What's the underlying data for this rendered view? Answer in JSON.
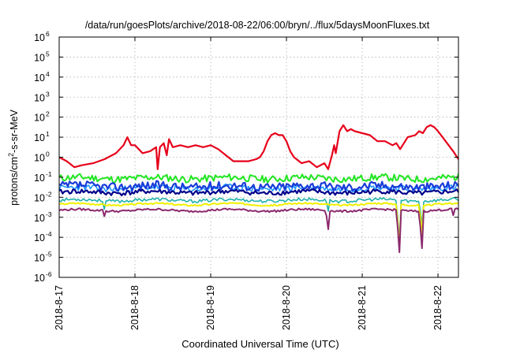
{
  "chart_data": {
    "type": "line",
    "title": "/data/run/goesPlots/archive/2018-08-22/06:00/bryn/../flux/5daysMoonFluxes.txt",
    "xlabel": "Coordinated Universal Time (UTC)",
    "ylabel_parts": {
      "base": "protons/cm",
      "sup": "2",
      "rest": "-s-sr-MeV"
    },
    "y_scale": "log",
    "ylim_exp": [
      -6,
      6
    ],
    "yticks": [
      {
        "base": "10",
        "exp": "-6",
        "value": -6
      },
      {
        "base": "10",
        "exp": "-5",
        "value": -5
      },
      {
        "base": "10",
        "exp": "-4",
        "value": -4
      },
      {
        "base": "10",
        "exp": "-3",
        "value": -3
      },
      {
        "base": "10",
        "exp": "-2",
        "value": -2
      },
      {
        "base": "10",
        "exp": "-1",
        "value": -1
      },
      {
        "base": "10",
        "exp": "0",
        "value": 0
      },
      {
        "base": "10",
        "exp": "1",
        "value": 1
      },
      {
        "base": "10",
        "exp": "2",
        "value": 2
      },
      {
        "base": "10",
        "exp": "3",
        "value": 3
      },
      {
        "base": "10",
        "exp": "4",
        "value": 4
      },
      {
        "base": "10",
        "exp": "5",
        "value": 5
      },
      {
        "base": "10",
        "exp": "6",
        "value": 6
      }
    ],
    "xlim_days": [
      0,
      5.27
    ],
    "xticks": [
      {
        "label": "2018-8-17",
        "day": 0
      },
      {
        "label": "2018-8-18",
        "day": 1
      },
      {
        "label": "2018-8-19",
        "day": 2
      },
      {
        "label": "2018-8-20",
        "day": 3
      },
      {
        "label": "2018-8-21",
        "day": 4
      },
      {
        "label": "2018-8-22",
        "day": 5
      }
    ],
    "grid": true,
    "series": [
      {
        "color": "#e6001a",
        "width": 2.2,
        "points": [
          [
            0,
            0.0
          ],
          [
            0.1,
            -0.2
          ],
          [
            0.2,
            -0.5
          ],
          [
            0.3,
            -0.4
          ],
          [
            0.45,
            -0.3
          ],
          [
            0.6,
            -0.1
          ],
          [
            0.75,
            0.2
          ],
          [
            0.85,
            0.6
          ],
          [
            0.9,
            1.0
          ],
          [
            0.95,
            0.6
          ],
          [
            1.0,
            0.6
          ],
          [
            1.05,
            0.4
          ],
          [
            1.1,
            0.2
          ],
          [
            1.2,
            0.3
          ],
          [
            1.28,
            0.5
          ],
          [
            1.3,
            -0.6
          ],
          [
            1.33,
            0.5
          ],
          [
            1.38,
            0.7
          ],
          [
            1.42,
            0.1
          ],
          [
            1.45,
            0.9
          ],
          [
            1.5,
            0.5
          ],
          [
            1.6,
            0.6
          ],
          [
            1.7,
            0.5
          ],
          [
            1.8,
            0.6
          ],
          [
            1.9,
            0.5
          ],
          [
            2.0,
            0.6
          ],
          [
            2.1,
            0.4
          ],
          [
            2.2,
            0.1
          ],
          [
            2.3,
            -0.2
          ],
          [
            2.4,
            -0.2
          ],
          [
            2.5,
            -0.2
          ],
          [
            2.6,
            -0.1
          ],
          [
            2.65,
            0.0
          ],
          [
            2.7,
            0.3
          ],
          [
            2.75,
            0.8
          ],
          [
            2.8,
            1.1
          ],
          [
            2.85,
            1.2
          ],
          [
            2.9,
            1.1
          ],
          [
            2.95,
            1.1
          ],
          [
            3.0,
            0.8
          ],
          [
            3.05,
            0.3
          ],
          [
            3.1,
            0.0
          ],
          [
            3.2,
            -0.3
          ],
          [
            3.3,
            -0.2
          ],
          [
            3.4,
            -0.5
          ],
          [
            3.5,
            -0.3
          ],
          [
            3.55,
            -0.6
          ],
          [
            3.6,
            0.1
          ],
          [
            3.63,
            0.6
          ],
          [
            3.65,
            0.2
          ],
          [
            3.7,
            1.3
          ],
          [
            3.75,
            1.6
          ],
          [
            3.8,
            1.3
          ],
          [
            3.85,
            1.4
          ],
          [
            3.9,
            1.3
          ],
          [
            4.0,
            1.2
          ],
          [
            4.1,
            1.1
          ],
          [
            4.2,
            0.8
          ],
          [
            4.3,
            0.8
          ],
          [
            4.4,
            0.6
          ],
          [
            4.45,
            0.7
          ],
          [
            4.5,
            0.4
          ],
          [
            4.55,
            0.7
          ],
          [
            4.6,
            1.0
          ],
          [
            4.7,
            1.1
          ],
          [
            4.75,
            1.3
          ],
          [
            4.8,
            1.2
          ],
          [
            4.85,
            1.5
          ],
          [
            4.9,
            1.6
          ],
          [
            4.95,
            1.5
          ],
          [
            5.0,
            1.3
          ],
          [
            5.1,
            0.8
          ],
          [
            5.2,
            0.3
          ],
          [
            5.27,
            -0.1
          ]
        ]
      },
      {
        "color": "#22e622",
        "width": 2.0,
        "base": -1.05,
        "amp": 0.18,
        "seed": 11,
        "dips": []
      },
      {
        "color": "#1e96ff",
        "width": 1.6,
        "base": -1.55,
        "amp": 0.16,
        "seed": 23,
        "dips": []
      },
      {
        "color": "#1a3cd8",
        "width": 2.2,
        "base": -1.45,
        "amp": 0.22,
        "seed": 37,
        "dips": []
      },
      {
        "color": "#00008b",
        "width": 2.2,
        "base": -1.75,
        "amp": 0.12,
        "seed": 41,
        "dips": []
      },
      {
        "color": "#20b2aa",
        "width": 1.6,
        "base": -2.15,
        "amp": 0.08,
        "seed": 53,
        "dips": [
          [
            0.6,
            -2.6
          ],
          [
            3.55,
            -2.7
          ],
          [
            4.5,
            -4.2
          ],
          [
            4.78,
            -3.4
          ]
        ]
      },
      {
        "color": "#f0f000",
        "width": 2.0,
        "base": -2.35,
        "amp": 0.04,
        "seed": 67,
        "dips": [
          [
            4.5,
            -4.5
          ],
          [
            4.78,
            -3.8
          ]
        ]
      },
      {
        "color": "#8b2a6e",
        "width": 2.0,
        "base": -2.65,
        "amp": 0.05,
        "seed": 79,
        "dips": [
          [
            0.6,
            -2.95
          ],
          [
            3.55,
            -3.6
          ],
          [
            4.5,
            -4.75
          ],
          [
            4.78,
            -4.55
          ],
          [
            5.2,
            -2.9
          ]
        ]
      }
    ]
  }
}
